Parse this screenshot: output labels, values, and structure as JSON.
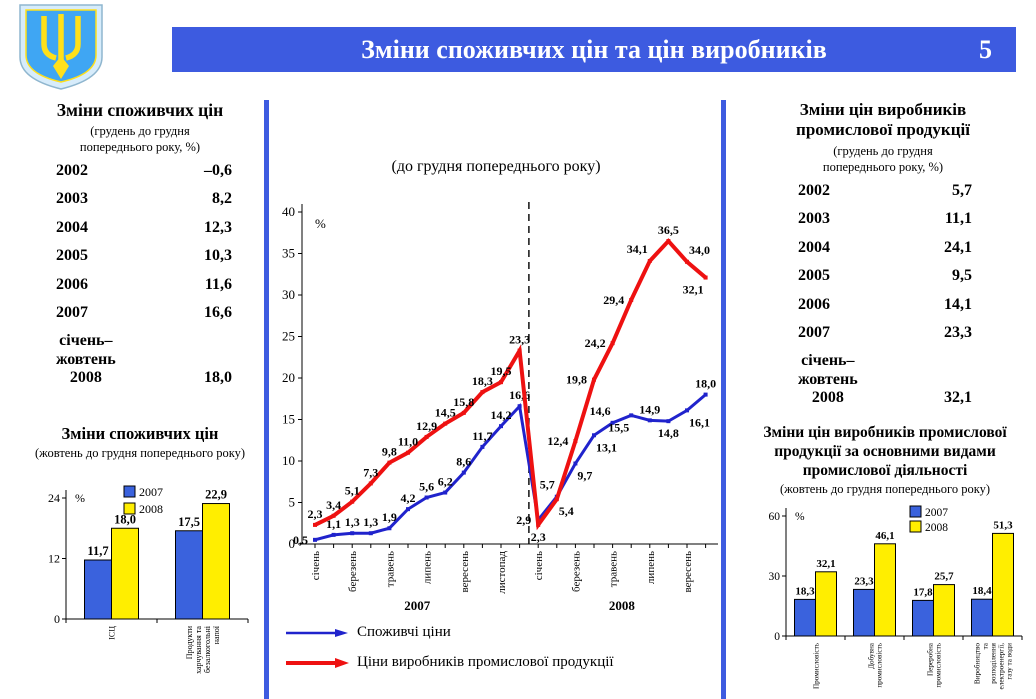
{
  "header": {
    "title": "Зміни споживчих цін та цін виробників",
    "page_number": "5"
  },
  "colors": {
    "accent_blue": "#3d5be0",
    "series_blue": "#2023cc",
    "series_red": "#ee1111",
    "bar_blue": "#3a62dd",
    "bar_yellow": "#ffee00",
    "emblem_shield": "#3fa6f3",
    "emblem_border": "#d7ecfb",
    "emblem_trident": "#ffe01a"
  },
  "left_panel": {
    "table": {
      "title": "Зміни споживчих цін",
      "subtitle": "(грудень до грудня\nпопереднього року, %)",
      "rows": [
        {
          "year": "2002",
          "value": "–0,6"
        },
        {
          "year": "2003",
          "value": "8,2"
        },
        {
          "year": "2004",
          "value": "12,3"
        },
        {
          "year": "2005",
          "value": "10,3"
        },
        {
          "year": "2006",
          "value": "11,6"
        },
        {
          "year": "2007",
          "value": "16,6"
        },
        {
          "year": "січень–\nжовтень\n2008",
          "value": "18,0"
        }
      ]
    }
  },
  "right_panel": {
    "table": {
      "title": "Зміни цін виробників\nпромислової продукції",
      "subtitle": "(грудень до грудня\nпопереднього року, %)",
      "rows": [
        {
          "year": "2002",
          "value": "5,7"
        },
        {
          "year": "2003",
          "value": "11,1"
        },
        {
          "year": "2004",
          "value": "24,1"
        },
        {
          "year": "2005",
          "value": "9,5"
        },
        {
          "year": "2006",
          "value": "14,1"
        },
        {
          "year": "2007",
          "value": "23,3"
        },
        {
          "year": "січень–\nжовтень\n2008",
          "value": "32,1"
        }
      ]
    }
  },
  "chart_data": [
    {
      "id": "consumer-vs-producer-monthly",
      "type": "line",
      "title": "(до грудня попереднього року)",
      "ylabel": "%",
      "ylim": [
        0,
        40
      ],
      "yticks": [
        0,
        5,
        10,
        15,
        20,
        25,
        30,
        35,
        40
      ],
      "grid": false,
      "legend_position": "bottom-left",
      "x_tick_labels": [
        "січень",
        "",
        "березень",
        "",
        "травень",
        "",
        "липень",
        "",
        "вересень",
        "",
        "листопад",
        "",
        "січень",
        "",
        "березень",
        "",
        "травень",
        "",
        "липень",
        "",
        "вересень",
        ""
      ],
      "year_labels": [
        {
          "label": "2007",
          "span": [
            0,
            11
          ]
        },
        {
          "label": "2008",
          "span": [
            12,
            21
          ]
        }
      ],
      "divider_between": [
        11,
        12
      ],
      "series": [
        {
          "name": "Споживчі ціни",
          "color": "#2023cc",
          "width": 3,
          "values": [
            0.5,
            1.1,
            1.3,
            1.3,
            1.9,
            4.2,
            5.6,
            6.2,
            8.6,
            11.7,
            14.2,
            16.6,
            2.9,
            5.7,
            9.7,
            13.1,
            14.6,
            15.5,
            14.9,
            14.8,
            16.1,
            18.0
          ],
          "labels": [
            "0,5",
            "1,1",
            "1,3",
            "1,3",
            "1,9",
            "4,2",
            "5,6",
            "6,2",
            "8,6",
            "11,7",
            "14,2",
            "16,6",
            "2,9",
            "5,7",
            "9,7",
            "13,1",
            "14,6",
            "15,5",
            "14,9",
            "14,8",
            "16,1",
            "18,0"
          ],
          "label_sides": [
            "l",
            "a",
            "a",
            "a",
            "a",
            "a",
            "a",
            "a",
            "a",
            "a",
            "a",
            "a",
            "l",
            "al",
            "br",
            "br",
            "al",
            "bl",
            "a",
            "b",
            "br",
            "a"
          ]
        },
        {
          "name": "Ціни виробників промислової продукції",
          "color": "#ee1111",
          "width": 4,
          "values": [
            2.3,
            3.4,
            5.1,
            7.3,
            9.8,
            11.0,
            12.9,
            14.5,
            15.8,
            18.3,
            19.5,
            23.3,
            2.3,
            5.4,
            12.4,
            19.8,
            24.2,
            29.4,
            34.1,
            36.5,
            34.0,
            32.1
          ],
          "labels": [
            "2,3",
            "3,4",
            "5,1",
            "7,3",
            "9,8",
            "11,0",
            "12,9",
            "14,5",
            "15,8",
            "18,3",
            "19,5",
            "23,3",
            "2,3",
            "5,4",
            "12,4",
            "19,8",
            "24,2",
            "29,4",
            "34,1",
            "36,5",
            "34,0",
            "32,1"
          ],
          "label_sides": [
            "a",
            "a",
            "a",
            "a",
            "a",
            "a",
            "a",
            "a",
            "a",
            "a",
            "a",
            "a",
            "b",
            "br",
            "l",
            "l",
            "l",
            "l",
            "al",
            "a",
            "ar",
            "bl"
          ]
        }
      ]
    },
    {
      "id": "consumer-prices-oct",
      "type": "bar",
      "title": "Зміни споживчих цін",
      "subtitle": "(жовтень до грудня попереднього року)",
      "ylabel": "%",
      "ylim": [
        0,
        24
      ],
      "yticks": [
        0,
        12,
        24
      ],
      "legend_position": "top",
      "categories": [
        "ІСЦ",
        "Продукти\nхарчування та\nбезалкогольні\nнапої"
      ],
      "series": [
        {
          "name": "2007",
          "color": "#3a62dd",
          "values": [
            11.7,
            17.5
          ],
          "labels": [
            "11,7",
            "17,5"
          ]
        },
        {
          "name": "2008",
          "color": "#ffee00",
          "values": [
            18.0,
            22.9
          ],
          "labels": [
            "18,0",
            "22,9"
          ]
        }
      ]
    },
    {
      "id": "producer-prices-by-activity",
      "type": "bar",
      "title": "Зміни цін виробників промислової\nпродукції за основними видами\nпромислової діяльності",
      "subtitle": "(жовтень до грудня попереднього року)",
      "ylabel": "%",
      "ylim": [
        0,
        60
      ],
      "yticks": [
        0,
        30,
        60
      ],
      "legend_position": "top-right",
      "categories": [
        "Промисловість",
        "Добувна\nпромисловість",
        "Переробна\nпромисловість",
        "Виробництво\nта\nрозподілення\nелектроенергії,\nгазу та води"
      ],
      "series": [
        {
          "name": "2007",
          "color": "#3a62dd",
          "values": [
            18.3,
            23.3,
            17.8,
            18.4
          ],
          "labels": [
            "18,3",
            "23,3",
            "17,8",
            "18,4"
          ]
        },
        {
          "name": "2008",
          "color": "#ffee00",
          "values": [
            32.1,
            46.1,
            25.7,
            51.3
          ],
          "labels": [
            "32,1",
            "46,1",
            "25,7",
            "51,3"
          ]
        }
      ]
    }
  ]
}
